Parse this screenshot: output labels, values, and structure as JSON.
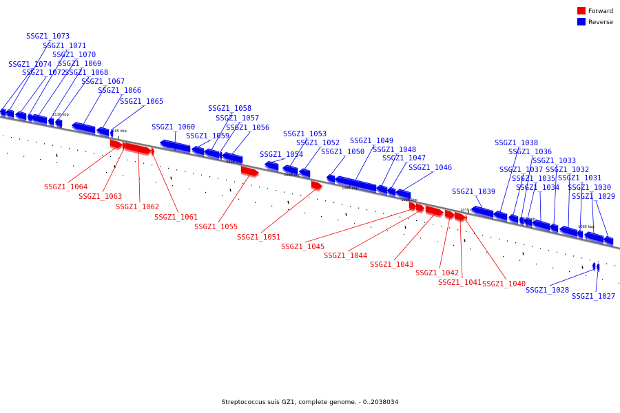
{
  "caption": "Streptococcus suis GZ1, complete genome. - 0..2038034",
  "legend": [
    {
      "label": "Forward",
      "color": "#ee0000"
    },
    {
      "label": "Reverse",
      "color": "#0000ee"
    }
  ],
  "colors": {
    "forward": "#ee0000",
    "reverse": "#0000ee",
    "backbone": "#777777"
  },
  "ticks": [
    "1110 kbp",
    "1105 kbp",
    "1100 kbp",
    "1095 kbp",
    "1090 kbp",
    "1085 kbp",
    "1080 kbp",
    "1075 kbp",
    "1070 kbp",
    "1065 kbp"
  ],
  "genes": [
    {
      "label": "SSGZ1_1074",
      "strand": "reverse"
    },
    {
      "label": "SSGZ1_1073",
      "strand": "reverse"
    },
    {
      "label": "SSGZ1_1072",
      "strand": "reverse"
    },
    {
      "label": "SSGZ1_1071",
      "strand": "reverse"
    },
    {
      "label": "SSGZ1_1070",
      "strand": "reverse"
    },
    {
      "label": "SSGZ1_1069",
      "strand": "reverse"
    },
    {
      "label": "SSGZ1_1068",
      "strand": "reverse"
    },
    {
      "label": "SSGZ1_1067",
      "strand": "reverse"
    },
    {
      "label": "SSGZ1_1066",
      "strand": "reverse"
    },
    {
      "label": "SSGZ1_1065",
      "strand": "reverse"
    },
    {
      "label": "SSGZ1_1064",
      "strand": "forward"
    },
    {
      "label": "SSGZ1_1063",
      "strand": "forward"
    },
    {
      "label": "SSGZ1_1062",
      "strand": "forward"
    },
    {
      "label": "SSGZ1_1061",
      "strand": "forward"
    },
    {
      "label": "SSGZ1_1060",
      "strand": "reverse"
    },
    {
      "label": "SSGZ1_1059",
      "strand": "reverse"
    },
    {
      "label": "SSGZ1_1058",
      "strand": "reverse"
    },
    {
      "label": "SSGZ1_1057",
      "strand": "reverse"
    },
    {
      "label": "SSGZ1_1056",
      "strand": "reverse"
    },
    {
      "label": "SSGZ1_1055",
      "strand": "forward"
    },
    {
      "label": "SSGZ1_1054",
      "strand": "reverse"
    },
    {
      "label": "SSGZ1_1053",
      "strand": "reverse"
    },
    {
      "label": "SSGZ1_1052",
      "strand": "reverse"
    },
    {
      "label": "SSGZ1_1051",
      "strand": "forward"
    },
    {
      "label": "SSGZ1_1050",
      "strand": "reverse"
    },
    {
      "label": "SSGZ1_1049",
      "strand": "reverse"
    },
    {
      "label": "SSGZ1_1048",
      "strand": "reverse"
    },
    {
      "label": "SSGZ1_1047",
      "strand": "reverse"
    },
    {
      "label": "SSGZ1_1046",
      "strand": "reverse"
    },
    {
      "label": "SSGZ1_1045",
      "strand": "forward"
    },
    {
      "label": "SSGZ1_1044",
      "strand": "forward"
    },
    {
      "label": "SSGZ1_1043",
      "strand": "forward"
    },
    {
      "label": "SSGZ1_1042",
      "strand": "forward"
    },
    {
      "label": "SSGZ1_1041",
      "strand": "forward"
    },
    {
      "label": "SSGZ1_1040",
      "strand": "forward"
    },
    {
      "label": "SSGZ1_1039",
      "strand": "reverse"
    },
    {
      "label": "SSGZ1_1038",
      "strand": "reverse"
    },
    {
      "label": "SSGZ1_1037",
      "strand": "reverse"
    },
    {
      "label": "SSGZ1_1036",
      "strand": "reverse"
    },
    {
      "label": "SSGZ1_1035",
      "strand": "reverse"
    },
    {
      "label": "SSGZ1_1034",
      "strand": "reverse"
    },
    {
      "label": "SSGZ1_1033",
      "strand": "reverse"
    },
    {
      "label": "SSGZ1_1032",
      "strand": "reverse"
    },
    {
      "label": "SSGZ1_1031",
      "strand": "reverse"
    },
    {
      "label": "SSGZ1_1030",
      "strand": "reverse"
    },
    {
      "label": "SSGZ1_1029",
      "strand": "reverse"
    },
    {
      "label": "SSGZ1_1028",
      "strand": "reverse"
    },
    {
      "label": "SSGZ1_1027",
      "strand": "reverse"
    }
  ]
}
